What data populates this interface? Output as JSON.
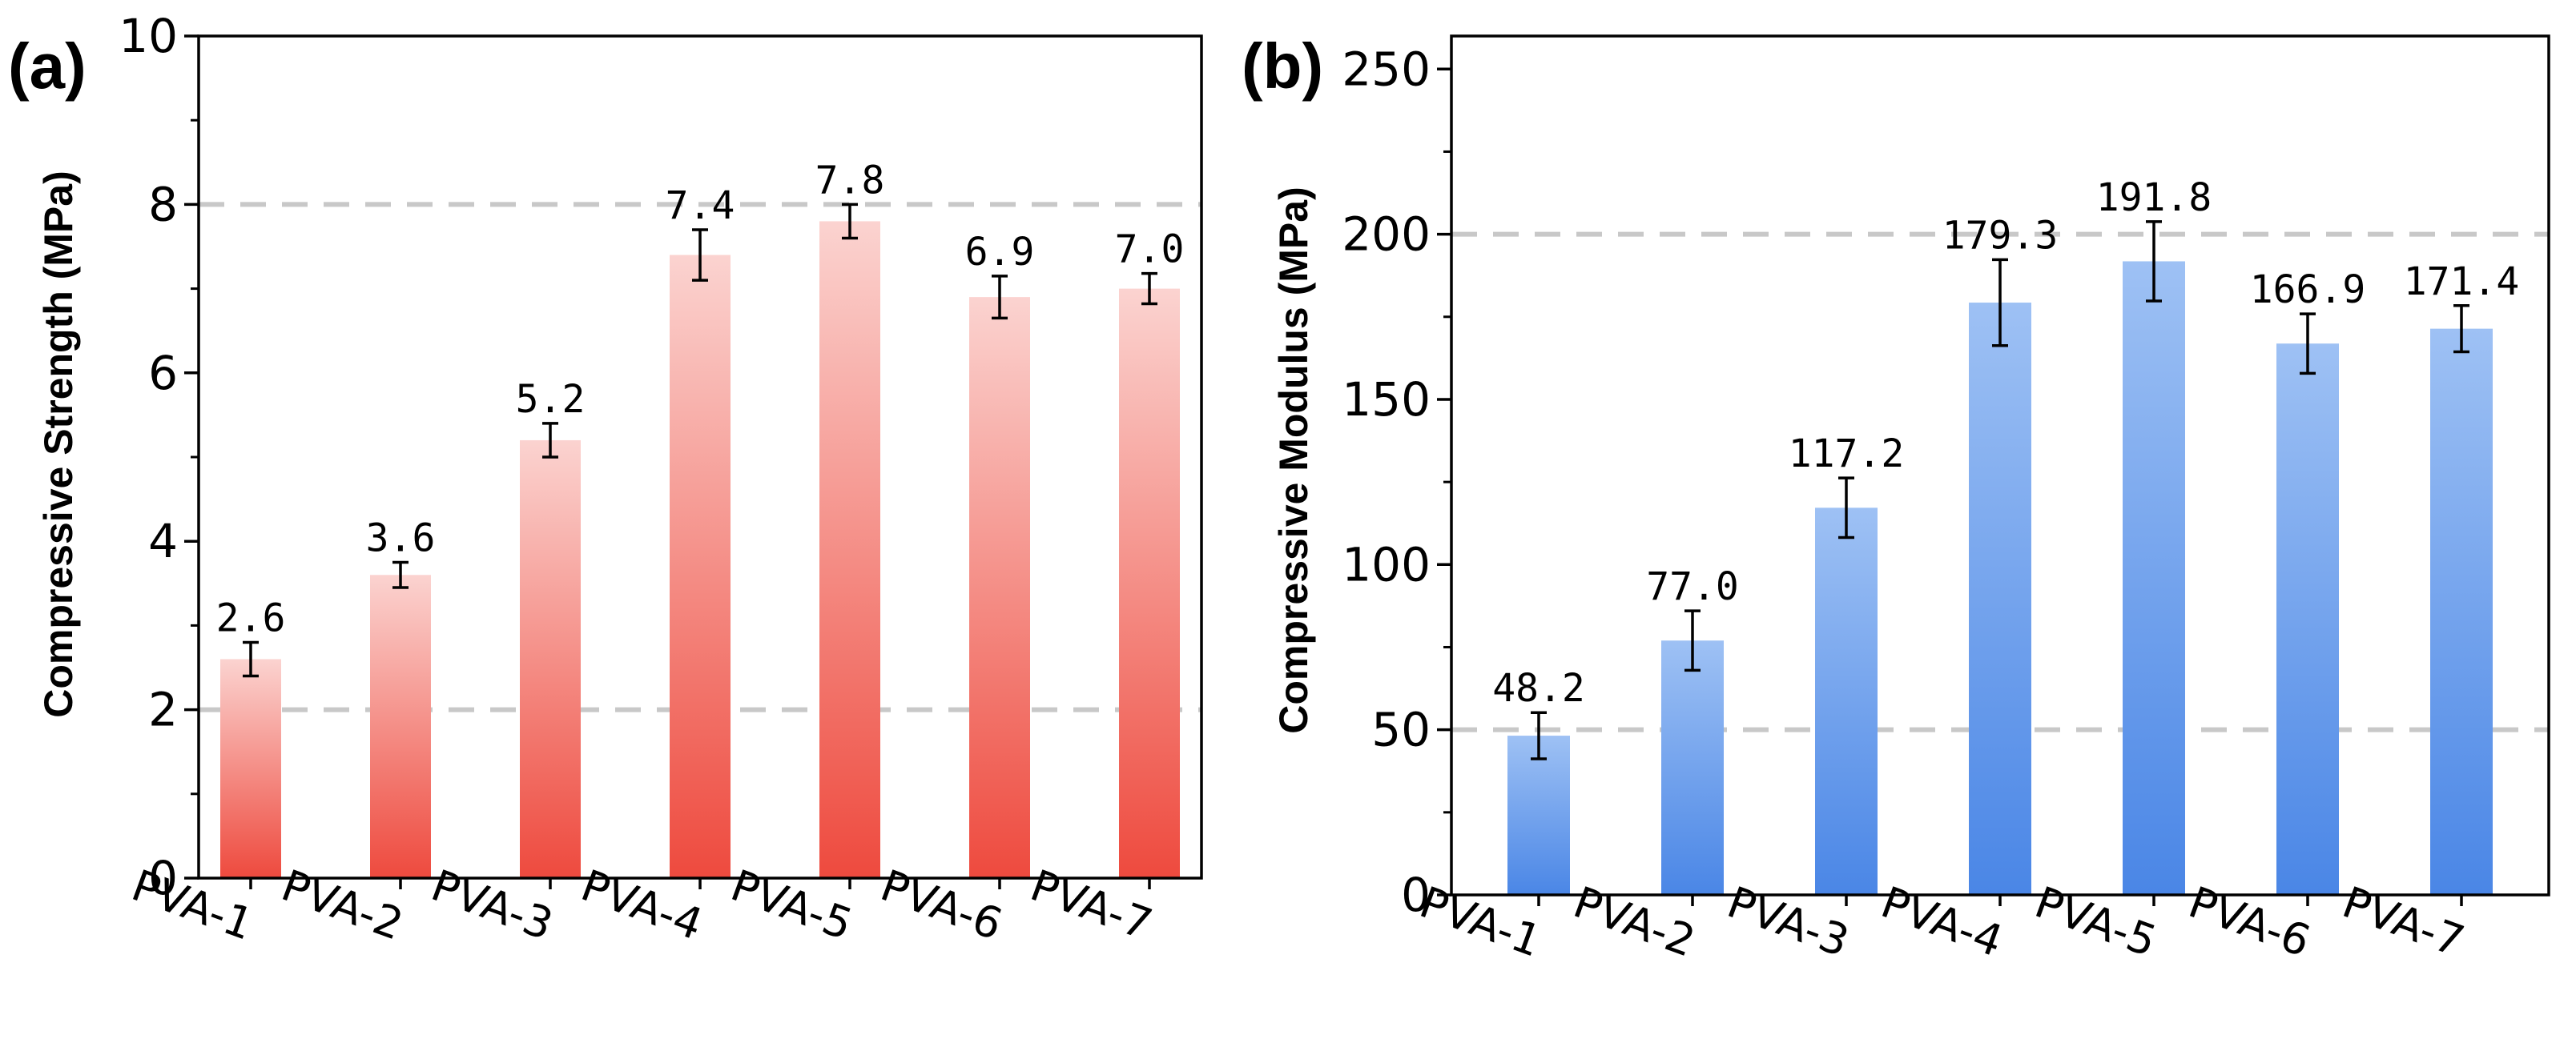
{
  "chart_data": [
    {
      "type": "bar",
      "panel_label": "(a)",
      "ylabel": "Compressive Strength (MPa)",
      "xlabel": "",
      "categories": [
        "PVA-1",
        "PVA-2",
        "PVA-3",
        "PVA-4",
        "PVA-5",
        "PVA-6",
        "PVA-7"
      ],
      "values": [
        2.6,
        3.6,
        5.2,
        7.4,
        7.8,
        6.9,
        7.0
      ],
      "errors": [
        0.2,
        0.15,
        0.2,
        0.3,
        0.2,
        0.25,
        0.18
      ],
      "value_labels": [
        "2.6",
        "3.6",
        "5.2",
        "7.4",
        "7.8",
        "6.9",
        "7.0"
      ],
      "ylim": [
        0,
        10
      ],
      "yticks": [
        0,
        2,
        4,
        6,
        8,
        10
      ],
      "reference_lines": [
        2,
        8
      ],
      "colors": {
        "bar_top": "#fbd3d0",
        "bar_bottom": "#ee4a3e",
        "ref_line": "#c8c8c8"
      }
    },
    {
      "type": "bar",
      "panel_label": "(b)",
      "ylabel": "Compressive Modulus (MPa)",
      "xlabel": "",
      "categories": [
        "PVA-1",
        "PVA-2",
        "PVA-3",
        "PVA-4",
        "PVA-5",
        "PVA-6",
        "PVA-7"
      ],
      "values": [
        48.2,
        77.0,
        117.2,
        179.3,
        191.8,
        166.9,
        171.4
      ],
      "errors": [
        7,
        9,
        9,
        13,
        12,
        9,
        7
      ],
      "value_labels": [
        "48.2",
        "77.0",
        "117.2",
        "179.3",
        "191.8",
        "166.9",
        "171.4"
      ],
      "ylim": [
        0,
        260
      ],
      "yticks": [
        0,
        50,
        100,
        150,
        200,
        250
      ],
      "reference_lines": [
        50,
        200
      ],
      "colors": {
        "bar_top": "#9ec1f4",
        "bar_bottom": "#4a86e6",
        "ref_line": "#c8c8c8"
      }
    }
  ]
}
